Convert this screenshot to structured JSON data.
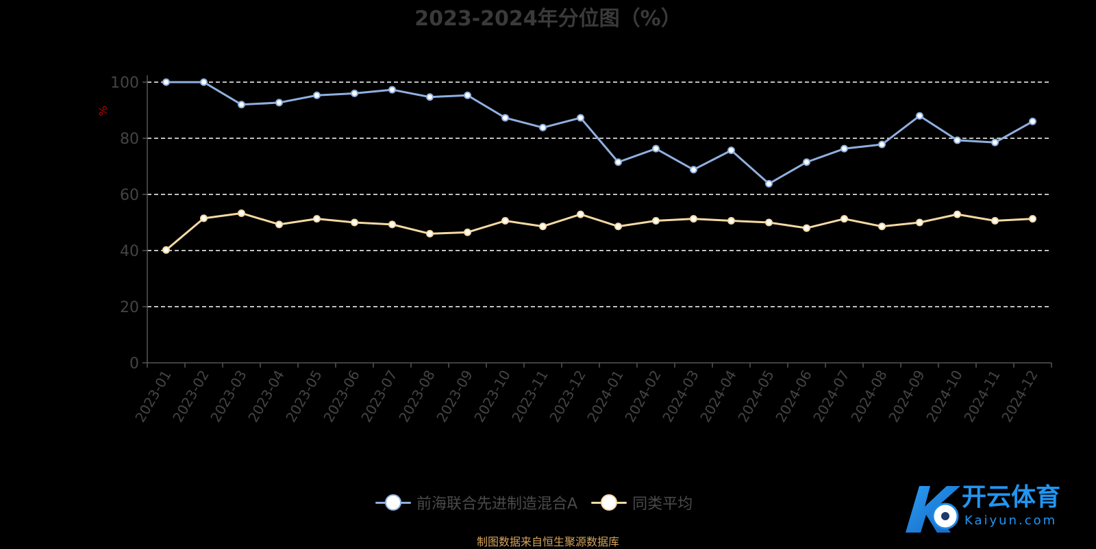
{
  "chart_data": {
    "type": "line",
    "title": "2023-2024年分位图（%）",
    "ylabel": "%",
    "ylim": [
      0,
      100
    ],
    "yticks": [
      0,
      20,
      40,
      60,
      80,
      100
    ],
    "grid": true,
    "legend_position": "bottom",
    "categories": [
      "2023-01",
      "2023-02",
      "2023-03",
      "2023-04",
      "2023-05",
      "2023-06",
      "2023-07",
      "2023-08",
      "2023-09",
      "2023-10",
      "2023-11",
      "2023-12",
      "2024-01",
      "2024-02",
      "2024-03",
      "2024-04",
      "2024-05",
      "2024-06",
      "2024-07",
      "2024-08",
      "2024-09",
      "2024-10",
      "2024-11",
      "2024-12"
    ],
    "series": [
      {
        "name": "前海联合先进制造混合A",
        "color": "#8fb0e0",
        "values": [
          100,
          100,
          92,
          92.7,
          95.3,
          96,
          97.3,
          94.7,
          95.3,
          87.3,
          83.8,
          87.3,
          71.5,
          76.3,
          68.8,
          75.7,
          63.8,
          71.5,
          76.3,
          77.8,
          88,
          79.3,
          78.5,
          86
        ]
      },
      {
        "name": "同类平均",
        "color": "#f5d9a3",
        "values": [
          40.2,
          51.5,
          53.3,
          49.3,
          51.3,
          50,
          49.3,
          46,
          46.5,
          50.6,
          48.6,
          52.9,
          48.6,
          50.6,
          51.3,
          50.6,
          50,
          48,
          51.3,
          48.6,
          50,
          52.9,
          50.6,
          51.3
        ]
      }
    ]
  },
  "source_text": "制图数据来自恒生聚源数据库",
  "logo": {
    "name": "开云体育",
    "sub": "Kaiyun.com"
  }
}
